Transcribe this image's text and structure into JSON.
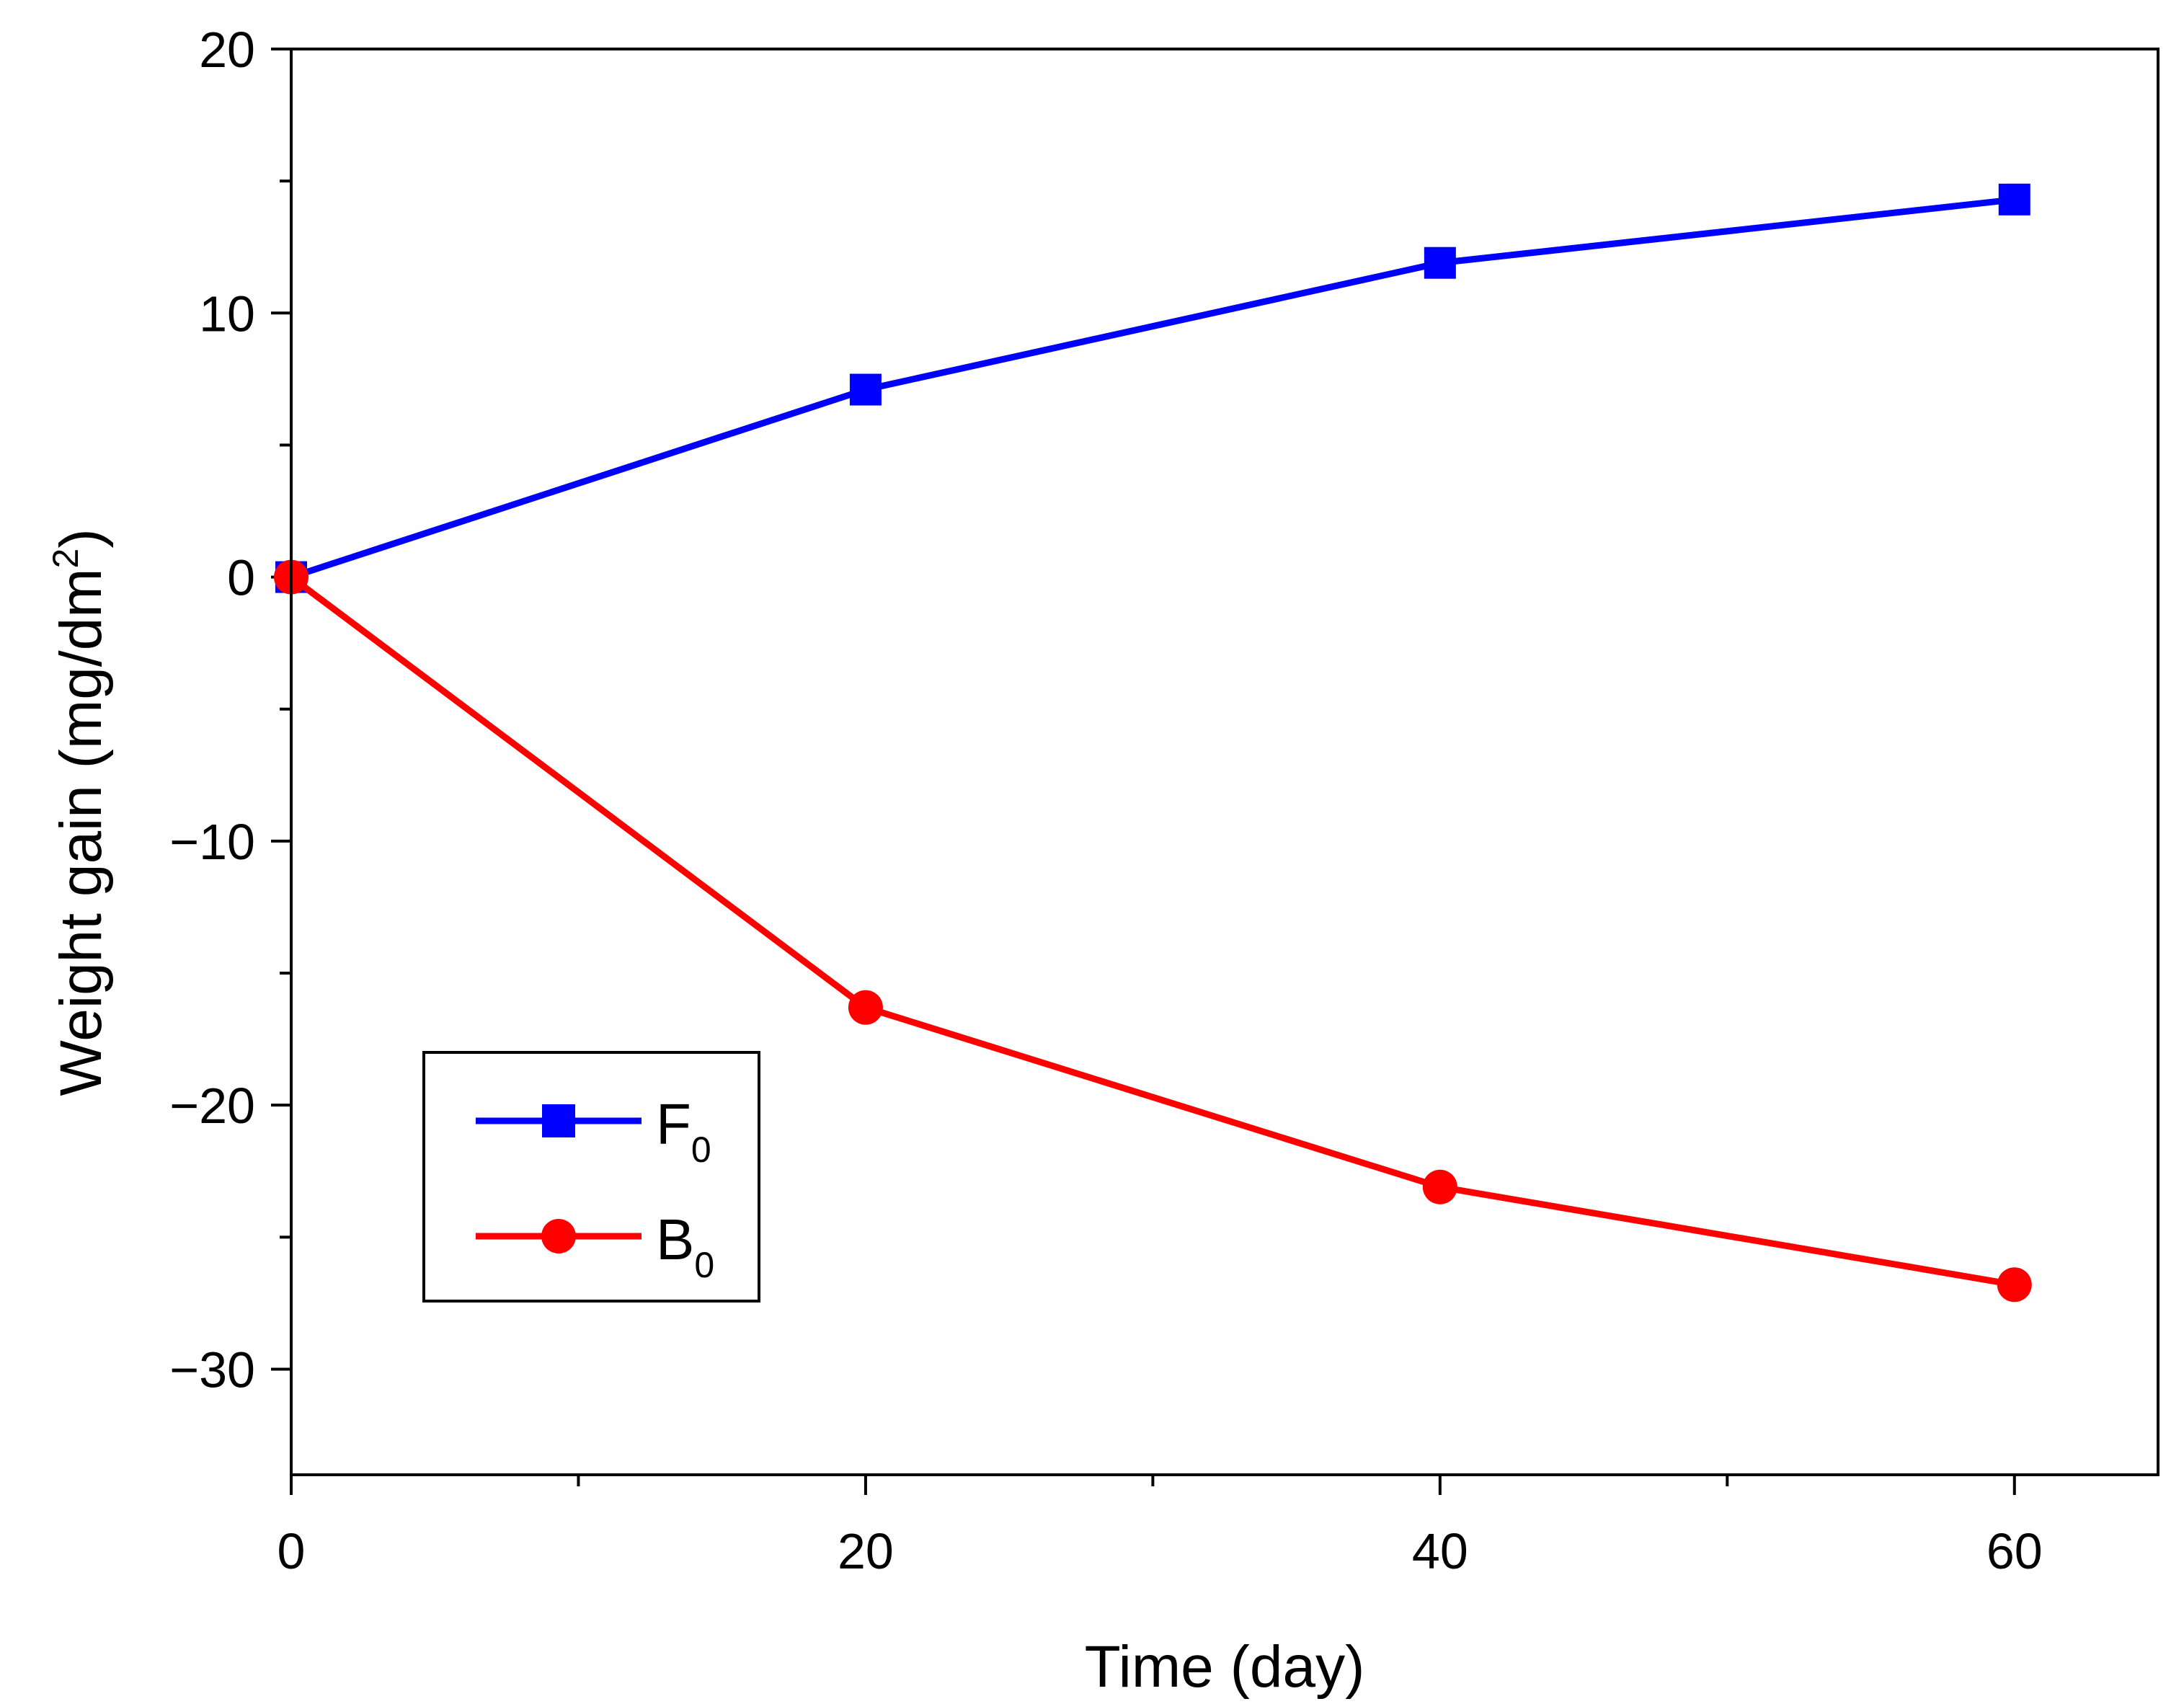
{
  "chart_data": {
    "type": "line",
    "title": "",
    "xlabel": "Time (day)",
    "ylabel_main": "Weight gain (mg/dm",
    "ylabel_sup": "2",
    "ylabel_close": ")",
    "xlim": [
      0,
      65
    ],
    "ylim": [
      -34,
      20
    ],
    "xticks": [
      0,
      20,
      40,
      60
    ],
    "xtick_labels": [
      "0",
      "20",
      "40",
      "60"
    ],
    "xminor": [
      10,
      30,
      50
    ],
    "yticks": [
      20,
      10,
      0,
      -10,
      -20,
      -30
    ],
    "ytick_labels": [
      "20",
      "10",
      "0",
      "−10",
      "−20",
      "−30"
    ],
    "yminor": [
      15,
      5,
      -5,
      -15,
      -25
    ],
    "grid": false,
    "legend_position": "lower-left",
    "series": [
      {
        "name": "F",
        "sub": "0",
        "color": "#0000ff",
        "marker": "square",
        "x": [
          0,
          20,
          40,
          60
        ],
        "y": [
          0,
          7.1,
          11.9,
          14.3
        ]
      },
      {
        "name": "B",
        "sub": "0",
        "color": "#ff0000",
        "marker": "circle",
        "x": [
          0,
          20,
          40,
          60
        ],
        "y": [
          0,
          -16.3,
          -23.1,
          -26.8
        ]
      }
    ]
  }
}
